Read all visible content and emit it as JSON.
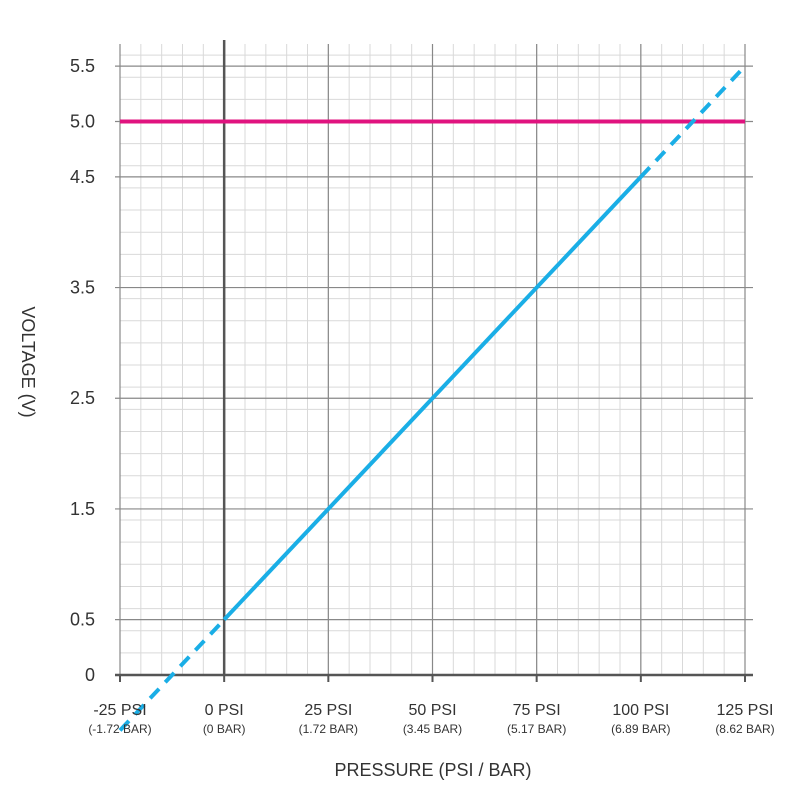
{
  "chart_data": {
    "type": "line",
    "title": "",
    "xlabel": "PRESSURE (PSI / BAR)",
    "ylabel": "VOLTAGE (V)",
    "xlim": [
      -25,
      125
    ],
    "ylim": [
      0,
      6
    ],
    "grid": true,
    "x_major_ticks": [
      {
        "value": -25,
        "label": "-25 PSI",
        "sublabel": "(-1.72 BAR)"
      },
      {
        "value": 0,
        "label": "0 PSI",
        "sublabel": "(0 BAR)"
      },
      {
        "value": 25,
        "label": "25 PSI",
        "sublabel": "(1.72 BAR)"
      },
      {
        "value": 50,
        "label": "50 PSI",
        "sublabel": "(3.45 BAR)"
      },
      {
        "value": 75,
        "label": "75 PSI",
        "sublabel": "(5.17 BAR)"
      },
      {
        "value": 100,
        "label": "100 PSI",
        "sublabel": "(6.89 BAR)"
      },
      {
        "value": 125,
        "label": "125 PSI",
        "sublabel": "(8.62 BAR)"
      }
    ],
    "y_ticks": [
      {
        "value": 0,
        "label": "0"
      },
      {
        "value": 0.5,
        "label": "0.5"
      },
      {
        "value": 1.5,
        "label": "1.5"
      },
      {
        "value": 2.5,
        "label": "2.5"
      },
      {
        "value": 3.5,
        "label": "3.5"
      },
      {
        "value": 4.5,
        "label": "4.5"
      },
      {
        "value": 5.0,
        "label": "5.0"
      },
      {
        "value": 5.5,
        "label": "5.5"
      }
    ],
    "series": [
      {
        "style": "solid",
        "color": "#1aaee6",
        "x": [
          0,
          100
        ],
        "y": [
          0.5,
          4.5
        ]
      },
      {
        "style": "dashed",
        "color": "#1aaee6",
        "x": [
          -25,
          0
        ],
        "y": [
          -0.5,
          0.5
        ]
      },
      {
        "style": "dashed",
        "color": "#1aaee6",
        "x": [
          100,
          125
        ],
        "y": [
          4.5,
          5.5
        ]
      }
    ],
    "reference_line": {
      "y": 5.0,
      "color": "#e0137f"
    },
    "colors": {
      "minor_grid": "#d9d9d9",
      "major_grid": "#888888",
      "zero_axis": "#555555",
      "text": "#333333"
    }
  }
}
